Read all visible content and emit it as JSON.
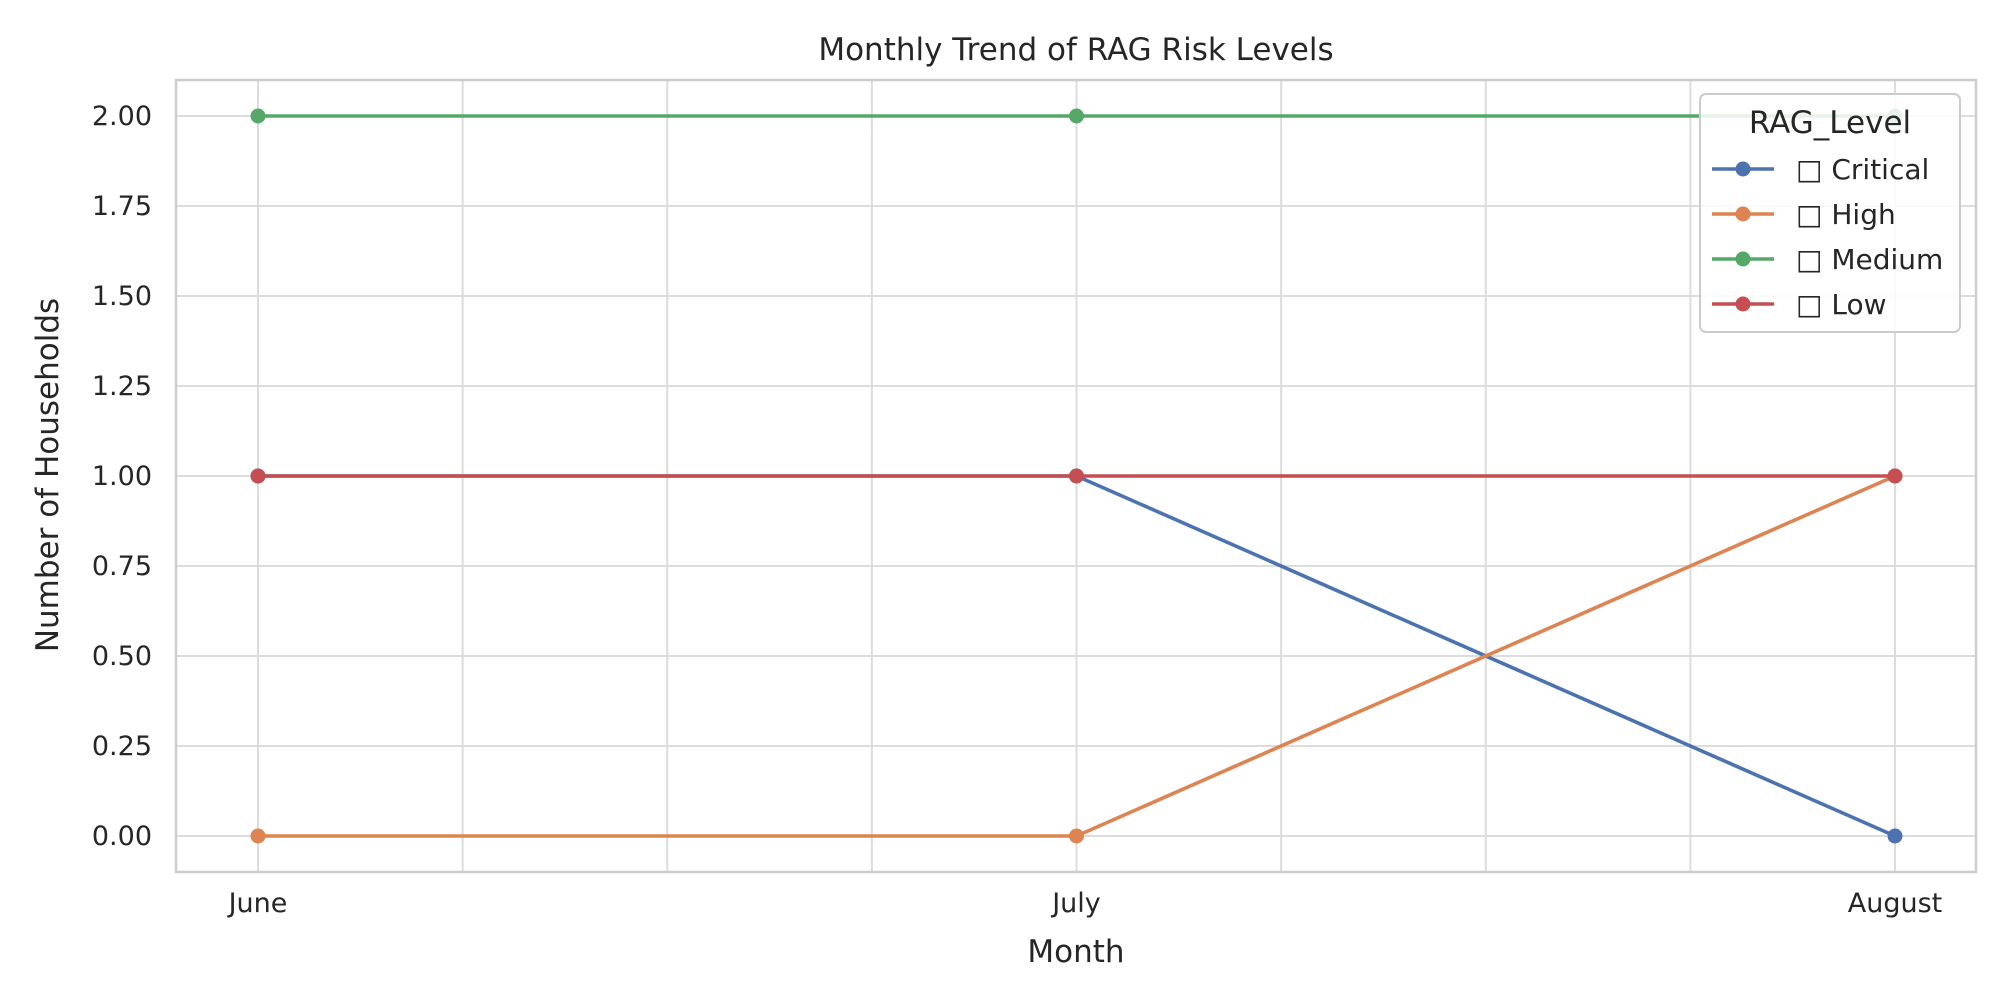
{
  "chart_data": {
    "type": "line",
    "title": "Monthly Trend of RAG Risk Levels",
    "xlabel": "Month",
    "ylabel": "Number of Households",
    "categories": [
      "June",
      "July",
      "August"
    ],
    "ylim": [
      -0.1,
      2.1
    ],
    "yticks": [
      "0.00",
      "0.25",
      "0.50",
      "0.75",
      "1.00",
      "1.25",
      "1.50",
      "1.75",
      "2.00"
    ],
    "grid": true,
    "legend": {
      "title": "RAG_Level",
      "placement": "top-right"
    },
    "series": [
      {
        "name": "□ Critical",
        "color": "#4c72b0",
        "values": [
          1,
          1,
          0
        ]
      },
      {
        "name": "□ High",
        "color": "#dd8452",
        "values": [
          0,
          0,
          1
        ]
      },
      {
        "name": "□ Medium",
        "color": "#55a868",
        "values": [
          2,
          2,
          2
        ]
      },
      {
        "name": "□ Low",
        "color": "#c44e52",
        "values": [
          1,
          1,
          1
        ]
      }
    ]
  }
}
